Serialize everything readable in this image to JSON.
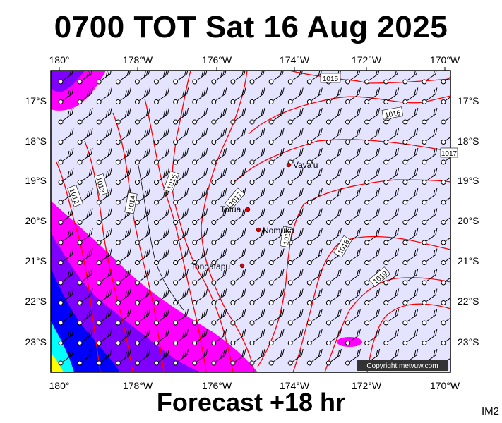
{
  "title": "0700 TOT Sat 16 Aug 2025",
  "footer": "Forecast +18 hr",
  "map_code": "IM2",
  "copyright": "Copyright metvuw.com",
  "lon_ticks": [
    "180°",
    "178°W",
    "176°W",
    "174°W",
    "172°W",
    "170°W"
  ],
  "lat_ticks": [
    "17°S",
    "18°S",
    "19°S",
    "20°S",
    "21°S",
    "22°S",
    "23°S"
  ],
  "places": [
    {
      "name": "Vava'u",
      "lon": -174.0,
      "lat": -18.65
    },
    {
      "name": "Tofua",
      "lon": -175.05,
      "lat": -19.75
    },
    {
      "name": "Nomuka",
      "lon": -174.8,
      "lat": -20.25
    },
    {
      "name": "Tongatapu",
      "lon": -175.2,
      "lat": -21.15
    }
  ],
  "isobar_labels": [
    "1012",
    "1013",
    "1014",
    "1015",
    "1016",
    "1017",
    "1018",
    "1019"
  ],
  "colors": {
    "background": "#e4e4ff",
    "isobar": "#ff0000",
    "precip_light": "#ff00ff",
    "precip_medium": "#8000ff",
    "precip_heavy": "#0000ff",
    "precip_extreme": "#00ffff",
    "place_dot": "#dd0000"
  }
}
